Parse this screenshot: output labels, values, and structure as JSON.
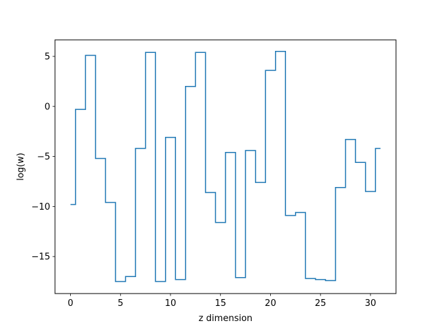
{
  "chart_data": {
    "type": "line",
    "drawstyle": "steps-mid",
    "xlabel": "z dimension",
    "ylabel": "log(w)",
    "xlim": [
      -1.55,
      32.55
    ],
    "ylim": [
      -18.7,
      6.65
    ],
    "xticks": [
      0,
      5,
      10,
      15,
      20,
      25,
      30
    ],
    "yticks": [
      -15,
      -10,
      -5,
      0,
      5
    ],
    "xtick_labels": [
      "0",
      "5",
      "10",
      "15",
      "20",
      "25",
      "30"
    ],
    "ytick_labels": [
      "−15",
      "−10",
      "−5",
      "0",
      "5"
    ],
    "grid": false,
    "color": "#1f77b4",
    "series": [
      {
        "x": [
          0,
          1,
          2,
          3,
          4,
          5,
          6,
          7,
          8,
          9,
          10,
          11,
          12,
          13,
          14,
          15,
          16,
          17,
          18,
          19,
          20,
          21,
          22,
          23,
          24,
          25,
          26,
          27,
          28,
          29,
          30,
          31
        ],
        "values": [
          -9.8,
          -0.3,
          5.1,
          -5.2,
          -9.6,
          -17.5,
          -17.0,
          -4.2,
          5.4,
          -17.5,
          -3.1,
          -17.3,
          2.0,
          5.4,
          -8.6,
          -11.6,
          -4.6,
          -17.1,
          -4.4,
          -7.6,
          3.6,
          5.5,
          -10.9,
          -10.6,
          -17.2,
          -17.3,
          -17.4,
          -8.1,
          -3.3,
          -5.6,
          -8.5,
          -4.2
        ]
      }
    ]
  }
}
